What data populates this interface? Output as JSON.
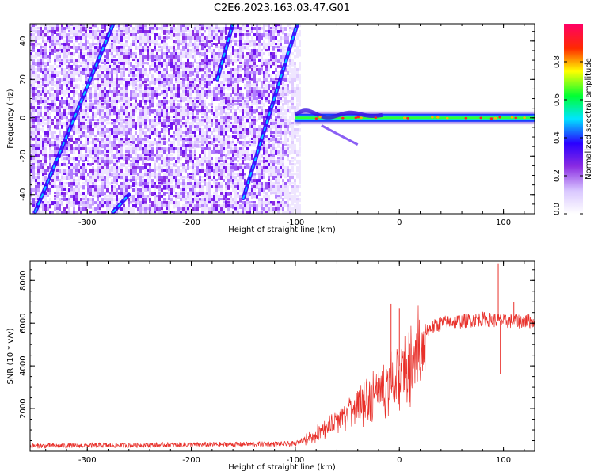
{
  "figure_title": "C2E6.2023.163.03.47.G01",
  "chart_data": [
    {
      "type": "heatmap",
      "title": "C2E6.2023.163.03.47.G01",
      "xlabel": "Height of straight line (km)",
      "ylabel": "Frequency (Hz)",
      "xlim": [
        -355,
        130
      ],
      "ylim": [
        -50,
        49
      ],
      "xticks": [
        -300,
        -200,
        -100,
        0,
        100
      ],
      "xtick_labels": [
        "-300",
        "-200",
        "-100",
        "0",
        "100"
      ],
      "yticks": [
        -40,
        -20,
        0,
        20,
        40
      ],
      "ytick_labels": [
        "-40",
        "-20",
        "0",
        "20",
        "40"
      ],
      "colorbar": {
        "label": "Normalized spectral amplitude",
        "range": [
          0,
          1
        ],
        "ticks": [
          0.0,
          0.2,
          0.4,
          0.6,
          0.8
        ],
        "tick_labels": [
          "0.0",
          "0.2",
          "0.4",
          "0.6",
          "0.8"
        ],
        "colors": [
          "#ffffff",
          "#d9c7ff",
          "#8a2be2",
          "#2a00ff",
          "#00e5ff",
          "#00ff33",
          "#ffff00",
          "#ff2a00",
          "#ff0066"
        ]
      },
      "noise_field_x_range": [
        -355,
        -95
      ],
      "features": [
        {
          "name": "diagonal streak 1",
          "x": [
            -350,
            -275
          ],
          "y": [
            -49,
            49
          ]
        },
        {
          "name": "diagonal streak 2",
          "x": [
            -275,
            -260
          ],
          "y": [
            -49,
            -40
          ]
        },
        {
          "name": "diagonal streak 3",
          "x": [
            -175,
            -160
          ],
          "y": [
            20,
            49
          ]
        },
        {
          "name": "diagonal streak 4",
          "x": [
            -150,
            -98
          ],
          "y": [
            -42,
            49
          ]
        },
        {
          "name": "carrier line",
          "x": [
            -100,
            130
          ],
          "y": [
            0,
            0
          ]
        }
      ]
    },
    {
      "type": "line",
      "xlabel": "Height of straight line (km)",
      "ylabel": "SNR (10 * v/v)",
      "xlim": [
        -355,
        130
      ],
      "ylim": [
        0,
        8900
      ],
      "xticks": [
        -300,
        -200,
        -100,
        0,
        100
      ],
      "xtick_labels": [
        "-300",
        "-200",
        "-100",
        "0",
        "100"
      ],
      "yticks": [
        2000,
        4000,
        6000,
        8000
      ],
      "ytick_labels": [
        "2000",
        "4000",
        "6000",
        "8000"
      ],
      "series": [
        {
          "name": "SNR",
          "color": "#e8302a",
          "envelope_x": [
            -355,
            -100,
            -80,
            -50,
            -20,
            0,
            20,
            40,
            80,
            100,
            130
          ],
          "envelope_y": [
            250,
            350,
            900,
            2000,
            3200,
            4000,
            5500,
            6000,
            6200,
            6100,
            6100
          ],
          "spikes": [
            {
              "x": -8,
              "y": 6900
            },
            {
              "x": 0,
              "y": 6700
            },
            {
              "x": 95,
              "y": 8800
            },
            {
              "x": 97,
              "y": 3600
            },
            {
              "x": 110,
              "y": 7000
            }
          ]
        }
      ]
    }
  ]
}
